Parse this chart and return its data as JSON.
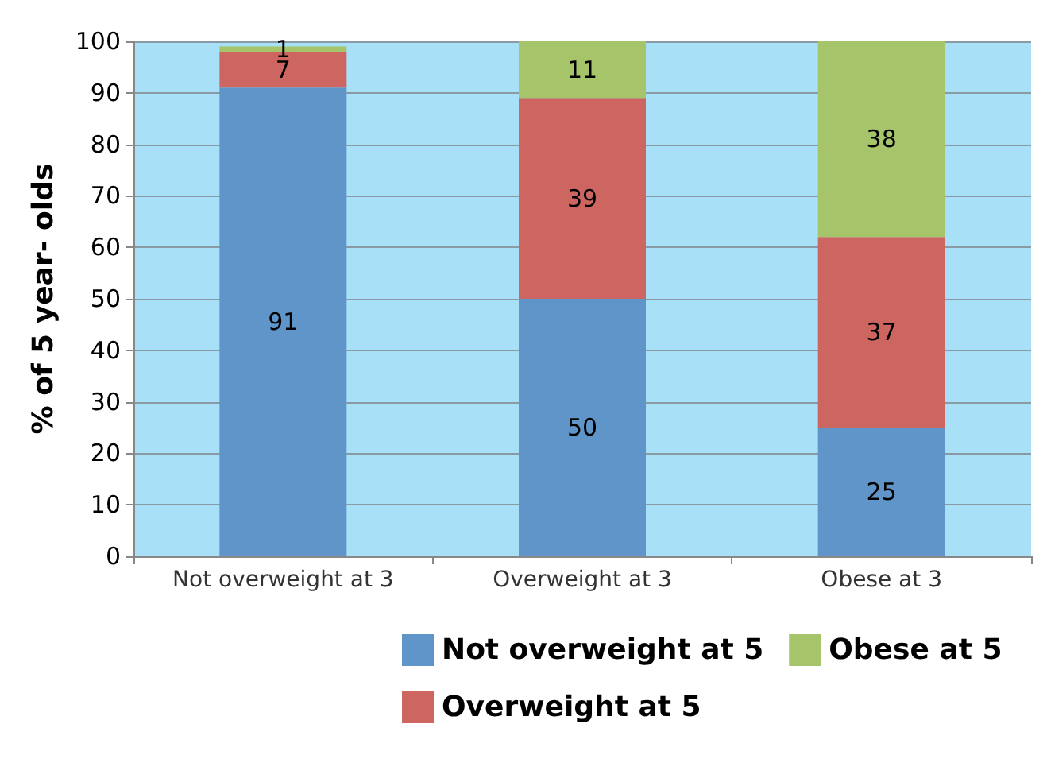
{
  "chart_data": {
    "type": "bar",
    "stacked": true,
    "ylabel": "% of 5 year- olds",
    "categories": [
      "Not overweight at 3",
      "Overweight at 3",
      "Obese at 3"
    ],
    "series": [
      {
        "name": "Not overweight at 5",
        "color": "#5f95c8",
        "values": [
          91,
          50,
          25
        ]
      },
      {
        "name": "Overweight at 5",
        "color": "#cd6560",
        "values": [
          7,
          39,
          37
        ]
      },
      {
        "name": "Obese at 5",
        "color": "#a6c46a",
        "values": [
          1,
          11,
          38
        ]
      }
    ],
    "ylim": [
      0,
      100
    ],
    "yticks": [
      0,
      10,
      20,
      30,
      40,
      50,
      60,
      70,
      80,
      90,
      100
    ],
    "grid": "y",
    "legend": "bottom",
    "data_labels": true
  }
}
